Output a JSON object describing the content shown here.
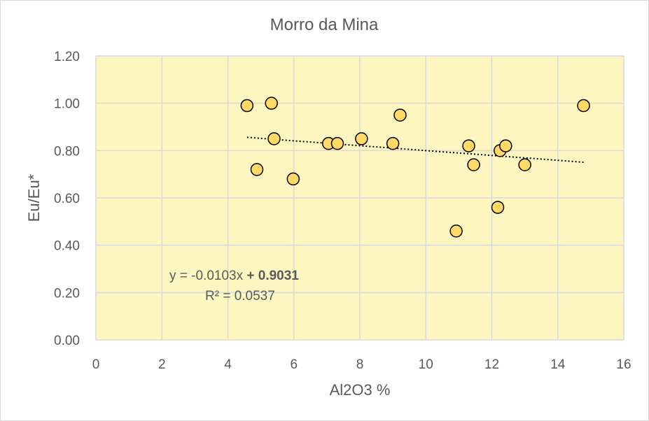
{
  "chart_data": {
    "type": "scatter",
    "title": "Morro da Mina",
    "xlabel": "Al2O3 %",
    "ylabel": "Eu/Eu*",
    "xlim": [
      0,
      16
    ],
    "ylim": [
      0,
      1.2
    ],
    "x_ticks": [
      "0",
      "2",
      "4",
      "6",
      "8",
      "10",
      "12",
      "14",
      "16"
    ],
    "y_ticks": [
      "0.00",
      "0.20",
      "0.40",
      "0.60",
      "0.80",
      "1.00",
      "1.20"
    ],
    "grid": true,
    "series": [
      {
        "points": [
          {
            "x": 4.58,
            "y": 0.99
          },
          {
            "x": 4.88,
            "y": 0.72
          },
          {
            "x": 5.32,
            "y": 1.0
          },
          {
            "x": 5.4,
            "y": 0.85
          },
          {
            "x": 5.98,
            "y": 0.68
          },
          {
            "x": 7.05,
            "y": 0.83
          },
          {
            "x": 7.32,
            "y": 0.83
          },
          {
            "x": 8.05,
            "y": 0.85
          },
          {
            "x": 9.0,
            "y": 0.83
          },
          {
            "x": 9.22,
            "y": 0.95
          },
          {
            "x": 10.92,
            "y": 0.46
          },
          {
            "x": 11.3,
            "y": 0.82
          },
          {
            "x": 11.45,
            "y": 0.74
          },
          {
            "x": 12.18,
            "y": 0.56
          },
          {
            "x": 12.25,
            "y": 0.8
          },
          {
            "x": 12.42,
            "y": 0.82
          },
          {
            "x": 13.0,
            "y": 0.74
          },
          {
            "x": 14.78,
            "y": 0.99
          }
        ]
      }
    ],
    "trendline": {
      "type": "linear",
      "slope": -0.0103,
      "intercept": 0.9031,
      "x_range": [
        4.58,
        14.78
      ]
    },
    "annotations": {
      "equation_prefix": "y = -0.0103x ",
      "equation_bold": "+ 0.9031",
      "r_squared": "R² = 0.0537"
    },
    "colors": {
      "plot_bg": "#fdf6c1",
      "marker_fill": "#ffd966",
      "marker_edge": "#000000",
      "grid": "#d9d9d9",
      "trendline": "#000000",
      "text": "#595959"
    }
  }
}
